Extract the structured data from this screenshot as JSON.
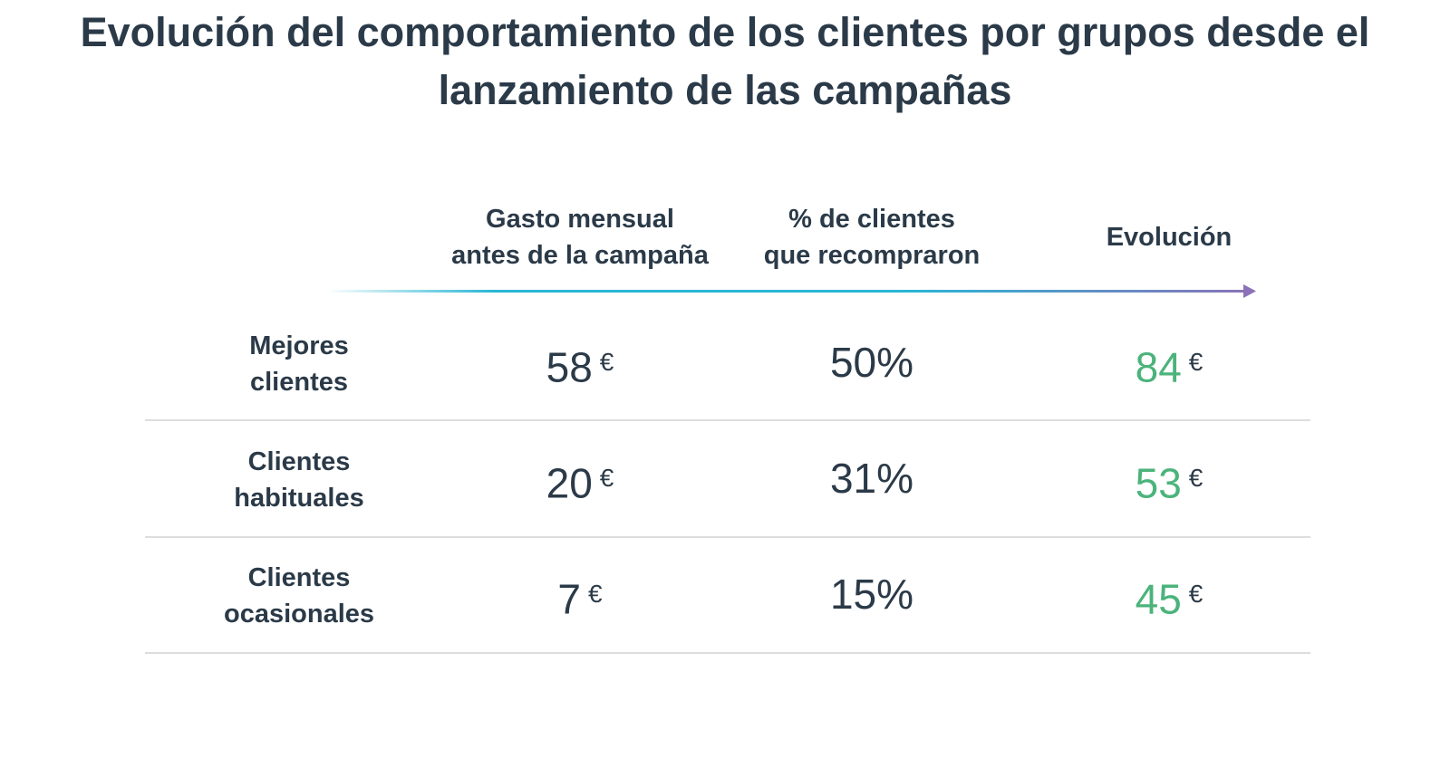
{
  "title": "Evolución del comportamiento de los clientes por grupos desde el lanzamiento de las campañas",
  "columns": [
    "Gasto mensual\nantes de la campaña",
    "% de clientes\nque recompraron",
    "Evolución"
  ],
  "colors": {
    "text": "#2b3a48",
    "evolution_value": "#4bb37b",
    "arrow_start": "#29b6d6",
    "arrow_end": "#8b72b8",
    "divider": "#dddddd"
  },
  "chart_data": {
    "type": "table",
    "title": "Evolución del comportamiento de los clientes por grupos desde el lanzamiento de las campañas",
    "columns": [
      "Gasto mensual antes de la campaña",
      "% de clientes que recompraron",
      "Evolución"
    ],
    "rows": [
      {
        "label": "Mejores\nclientes",
        "gasto": "58",
        "gasto_unit": "€",
        "recompra": "50%",
        "evolucion": "84",
        "evolucion_unit": "€"
      },
      {
        "label": "Clientes\nhabituales",
        "gasto": "20",
        "gasto_unit": "€",
        "recompra": "31%",
        "evolucion": "53",
        "evolucion_unit": "€"
      },
      {
        "label": "Clientes\nocasionales",
        "gasto": "7",
        "gasto_unit": "€",
        "recompra": "15%",
        "evolucion": "45",
        "evolucion_unit": "€"
      }
    ]
  }
}
